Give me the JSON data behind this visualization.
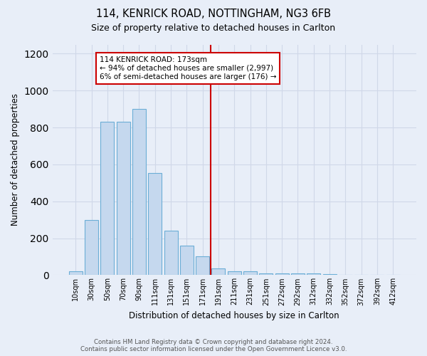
{
  "title_line1": "114, KENRICK ROAD, NOTTINGHAM, NG3 6FB",
  "title_line2": "Size of property relative to detached houses in Carlton",
  "xlabel": "Distribution of detached houses by size in Carlton",
  "ylabel": "Number of detached properties",
  "bar_labels": [
    "10sqm",
    "30sqm",
    "50sqm",
    "70sqm",
    "90sqm",
    "111sqm",
    "131sqm",
    "151sqm",
    "171sqm",
    "191sqm",
    "211sqm",
    "231sqm",
    "251sqm",
    "272sqm",
    "292sqm",
    "312sqm",
    "332sqm",
    "352sqm",
    "372sqm",
    "392sqm",
    "412sqm"
  ],
  "bar_values": [
    20,
    300,
    830,
    830,
    900,
    555,
    240,
    160,
    100,
    35,
    20,
    20,
    10,
    10,
    10,
    10,
    5,
    0,
    0,
    0,
    0
  ],
  "bar_color": "#c5d8ee",
  "bar_edge_color": "#6baed6",
  "background_color": "#e8eef8",
  "grid_color": "#d0d8e8",
  "property_line_bin": 8,
  "annotation_text_line1": "114 KENRICK ROAD: 173sqm",
  "annotation_text_line2": "← 94% of detached houses are smaller (2,997)",
  "annotation_text_line3": "6% of semi-detached houses are larger (176) →",
  "annotation_box_color": "#ffffff",
  "annotation_box_edge": "#cc0000",
  "red_line_color": "#cc0000",
  "ylim": [
    0,
    1250
  ],
  "yticks": [
    0,
    200,
    400,
    600,
    800,
    1000,
    1200
  ],
  "footer_line1": "Contains HM Land Registry data © Crown copyright and database right 2024.",
  "footer_line2": "Contains public sector information licensed under the Open Government Licence v3.0."
}
